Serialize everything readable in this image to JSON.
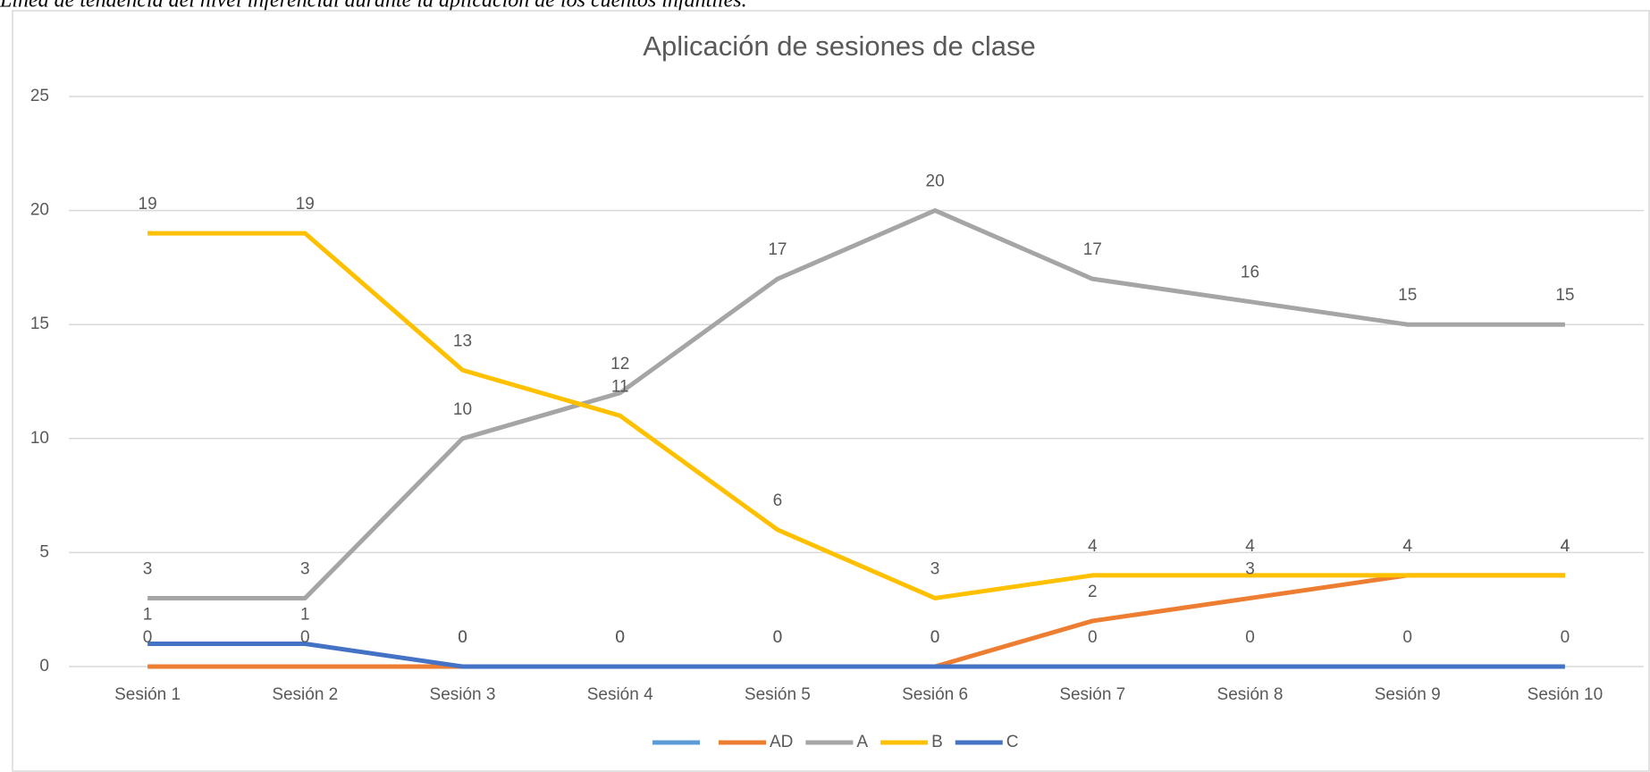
{
  "caption": "Línea de tendencia del nivel inferencial durante la aplicación de los cuentos infantiles.",
  "chart_data": {
    "type": "line",
    "title": "Aplicación de sesiones de clase",
    "categories": [
      "Sesión 1",
      "Sesión 2",
      "Sesión 3",
      "Sesión 4",
      "Sesión 5",
      "Sesión 6",
      "Sesión 7",
      "Sesión 8",
      "Sesión 9",
      "Sesión 10"
    ],
    "series": [
      {
        "name": "AD",
        "color": "#ed7d31",
        "values": [
          0,
          0,
          0,
          0,
          0,
          0,
          2,
          3,
          4,
          4
        ]
      },
      {
        "name": "A",
        "color": "#a5a5a5",
        "values": [
          3,
          3,
          10,
          12,
          17,
          20,
          17,
          16,
          15,
          15
        ]
      },
      {
        "name": "B",
        "color": "#ffc000",
        "values": [
          19,
          19,
          13,
          11,
          6,
          3,
          4,
          4,
          4,
          4
        ]
      },
      {
        "name": "C",
        "color": "#4472c4",
        "values": [
          1,
          1,
          0,
          0,
          0,
          0,
          0,
          0,
          0,
          0
        ]
      }
    ],
    "ylim": [
      0,
      25
    ],
    "yticks": [
      0,
      5,
      10,
      15,
      20,
      25
    ],
    "grid": true,
    "legend": "bottom"
  }
}
